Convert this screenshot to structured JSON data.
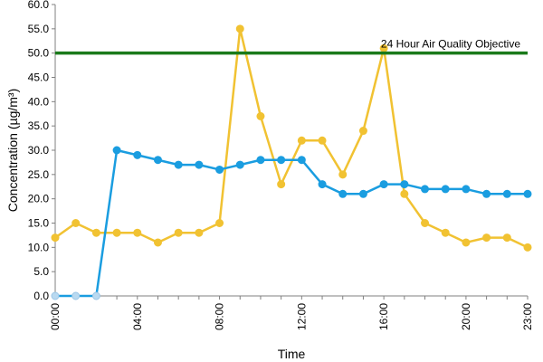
{
  "chart_data": {
    "type": "line",
    "xlabel": "Time",
    "ylabel": "Concentration (µg/m³)",
    "ylim": [
      0,
      60
    ],
    "xlim": [
      0,
      23
    ],
    "y_ticks": [
      "0.0",
      "5.0",
      "10.0",
      "15.0",
      "20.0",
      "25.0",
      "30.0",
      "35.0",
      "40.0",
      "45.0",
      "50.0",
      "55.0",
      "60.0"
    ],
    "x_ticks": [
      {
        "hour": 0,
        "label": "00:00"
      },
      {
        "hour": 4,
        "label": "04:00"
      },
      {
        "hour": 8,
        "label": "08:00"
      },
      {
        "hour": 12,
        "label": "12:00"
      },
      {
        "hour": 16,
        "label": "16:00"
      },
      {
        "hour": 20,
        "label": "20:00"
      },
      {
        "hour": 23,
        "label": "23:00"
      }
    ],
    "x": [
      0,
      1,
      2,
      3,
      4,
      5,
      6,
      7,
      8,
      9,
      10,
      11,
      12,
      13,
      14,
      15,
      16,
      17,
      18,
      19,
      20,
      21,
      22,
      23
    ],
    "series": [
      {
        "color": "#f1c232",
        "values": [
          12,
          15,
          13,
          13,
          13,
          11,
          13,
          13,
          15,
          55,
          37,
          23,
          32,
          32,
          25,
          34,
          51,
          21,
          15,
          13,
          11,
          12,
          12,
          10
        ]
      },
      {
        "color": "#1a9de0",
        "values": [
          0,
          0,
          0,
          30,
          29,
          28,
          27,
          27,
          26,
          27,
          28,
          28,
          28,
          23,
          21,
          21,
          23,
          23,
          22,
          22,
          22,
          21,
          21,
          21
        ]
      }
    ],
    "reference_line": {
      "value": 50,
      "label": "24 Hour Air Quality Objective",
      "color": "#1a7a1a"
    },
    "grid": false,
    "legend": "none"
  }
}
